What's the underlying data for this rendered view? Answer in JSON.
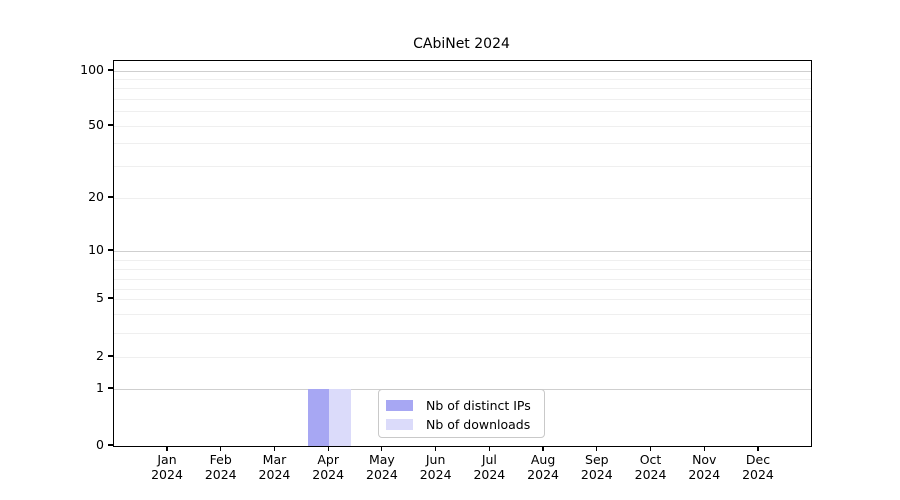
{
  "chart_data": {
    "type": "bar",
    "title": "CAbiNet 2024",
    "categories": [
      "Jan",
      "Feb",
      "Mar",
      "Apr",
      "May",
      "Jun",
      "Jul",
      "Aug",
      "Sep",
      "Oct",
      "Nov",
      "Dec"
    ],
    "x_tick_year": "2024",
    "series": [
      {
        "name": "Nb of distinct IPs",
        "color": "#a7a7f3",
        "values": [
          0,
          0,
          0,
          1,
          0,
          0,
          0,
          0,
          0,
          0,
          0,
          0
        ]
      },
      {
        "name": "Nb of downloads",
        "color": "#dbdbfa",
        "values": [
          0,
          0,
          0,
          1,
          0,
          0,
          0,
          0,
          0,
          0,
          0,
          0
        ]
      }
    ],
    "yscale": "symlog",
    "ylim": [
      0,
      113
    ],
    "y_major_ticks": [
      0,
      1,
      2,
      5,
      10,
      20,
      50,
      100
    ],
    "grid": {
      "major_values": [
        1,
        10,
        100
      ],
      "minor_values": [
        2,
        3,
        4,
        5,
        6,
        7,
        8,
        9,
        20,
        30,
        40,
        50,
        60,
        70,
        80,
        90
      ],
      "major_color": "#cfcfcf",
      "minor_color": "#efefef"
    },
    "legend": {
      "entries": [
        "Nb of distinct IPs",
        "Nb of downloads"
      ],
      "position": "lower center"
    },
    "scale_anchors": [
      [
        0,
        445
      ],
      [
        1,
        388
      ],
      [
        2,
        356
      ],
      [
        3,
        332
      ],
      [
        4,
        313
      ],
      [
        5,
        298
      ],
      [
        6,
        288
      ],
      [
        7,
        278
      ],
      [
        8,
        268
      ],
      [
        9,
        258.5
      ],
      [
        10,
        250
      ],
      [
        20,
        197
      ],
      [
        30,
        165
      ],
      [
        40,
        142
      ],
      [
        50,
        125
      ],
      [
        60,
        110
      ],
      [
        70,
        98
      ],
      [
        80,
        87
      ],
      [
        90,
        78
      ],
      [
        100,
        70
      ],
      [
        113.7,
        60
      ]
    ]
  }
}
